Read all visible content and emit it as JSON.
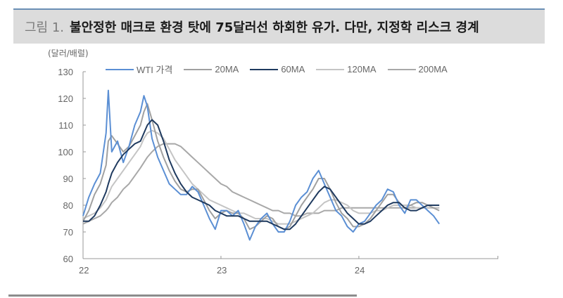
{
  "title": {
    "prefix": "그림 1.",
    "text": "불안정한 매크로 환경 탓에 75달러선 하회한 유가. 다만, 지정학 리스크 경계"
  },
  "unit_label": "(달러/배럴)",
  "legend": [
    {
      "label": "WTI 가격",
      "color": "#5b8fd4"
    },
    {
      "label": "20MA",
      "color": "#a0a0a0"
    },
    {
      "label": "60MA",
      "color": "#1f3a5f"
    },
    {
      "label": "120MA",
      "color": "#c4c4c4"
    },
    {
      "label": "200MA",
      "color": "#a8a8a8"
    }
  ],
  "chart_data": {
    "type": "line",
    "title": "불안정한 매크로 환경 탓에 75달러선 하회한 유가. 다만, 지정학 리스크 경계",
    "xlabel": "",
    "ylabel": "(달러/배럴)",
    "ylim": [
      60,
      130
    ],
    "yticks": [
      60,
      70,
      80,
      90,
      100,
      110,
      120,
      130
    ],
    "xtick_labels": [
      "22",
      "23",
      "24"
    ],
    "x_unit": "months since Jan 2022",
    "x": [
      0,
      0.5,
      1,
      1.5,
      2,
      2.2,
      2.5,
      3,
      3.5,
      4,
      4.5,
      5,
      5.3,
      5.6,
      6,
      6.5,
      7,
      7.5,
      8,
      8.5,
      9,
      9.5,
      10,
      10.5,
      11,
      11.5,
      12,
      12.5,
      13,
      13.5,
      14,
      14.5,
      15,
      15.5,
      16,
      16.5,
      17,
      17.5,
      18,
      18.5,
      19,
      19.5,
      20,
      20.5,
      21,
      21.5,
      22,
      22.5,
      23,
      23.5,
      24,
      24.5,
      25,
      25.5,
      26,
      26.5,
      27,
      27.5,
      28,
      28.5,
      29,
      29.5,
      30,
      30.5,
      31
    ],
    "series": [
      {
        "name": "WTI 가격",
        "color": "#5b8fd4",
        "width": 2,
        "values": [
          76,
          83,
          88,
          92,
          107,
          123,
          100,
          104,
          96,
          102,
          110,
          115,
          121,
          117,
          105,
          98,
          93,
          88,
          86,
          84,
          84,
          87,
          85,
          80,
          75,
          71,
          78,
          78,
          76,
          78,
          73,
          67,
          72,
          75,
          77,
          73,
          70,
          70,
          74,
          80,
          83,
          85,
          90,
          93,
          88,
          83,
          78,
          76,
          72,
          70,
          73,
          74,
          77,
          80,
          82,
          86,
          85,
          80,
          77,
          82,
          82,
          80,
          78,
          76,
          73
        ]
      },
      {
        "name": "20MA",
        "color": "#a0a0a0",
        "width": 2,
        "values": [
          74,
          78,
          84,
          88,
          95,
          104,
          106,
          103,
          100,
          102,
          106,
          110,
          115,
          118,
          112,
          104,
          98,
          93,
          89,
          86,
          85,
          86,
          86,
          82,
          78,
          75,
          77,
          78,
          77,
          77,
          75,
          71,
          72,
          74,
          76,
          75,
          72,
          71,
          72,
          76,
          80,
          83,
          86,
          90,
          90,
          86,
          81,
          77,
          75,
          72,
          72,
          73,
          75,
          78,
          81,
          84,
          84,
          81,
          79,
          80,
          81,
          81,
          80,
          79,
          78
        ]
      },
      {
        "name": "60MA",
        "color": "#1f3a5f",
        "width": 2,
        "values": [
          74,
          74,
          76,
          80,
          85,
          88,
          92,
          96,
          99,
          101,
          103,
          104,
          107,
          110,
          112,
          110,
          104,
          97,
          92,
          88,
          85,
          83,
          82,
          81,
          80,
          78,
          77,
          76,
          76,
          76,
          75,
          74,
          74,
          74,
          74,
          73,
          72,
          71,
          71,
          73,
          76,
          79,
          82,
          85,
          87,
          86,
          83,
          80,
          77,
          75,
          73,
          73,
          74,
          76,
          78,
          80,
          81,
          81,
          79,
          78,
          78,
          79,
          80,
          80,
          80
        ]
      },
      {
        "name": "120MA",
        "color": "#c4c4c4",
        "width": 2,
        "values": [
          75,
          76,
          77,
          79,
          82,
          84,
          87,
          90,
          93,
          96,
          99,
          102,
          105,
          107,
          108,
          107,
          105,
          101,
          97,
          94,
          91,
          88,
          86,
          84,
          82,
          81,
          80,
          79,
          78,
          77,
          77,
          76,
          75,
          75,
          75,
          74,
          73,
          73,
          73,
          74,
          75,
          76,
          77,
          79,
          81,
          82,
          82,
          81,
          80,
          78,
          77,
          77,
          77,
          78,
          78,
          79,
          80,
          80,
          80,
          80,
          79,
          79,
          79,
          79,
          79
        ]
      },
      {
        "name": "200MA",
        "color": "#a8a8a8",
        "width": 2,
        "values": [
          73,
          74,
          75,
          76,
          78,
          79,
          81,
          83,
          86,
          88,
          91,
          94,
          96,
          98,
          100,
          102,
          103,
          103,
          103,
          102,
          100,
          98,
          96,
          94,
          92,
          90,
          88,
          87,
          85,
          84,
          83,
          82,
          81,
          80,
          79,
          78,
          78,
          77,
          77,
          76,
          76,
          77,
          77,
          77,
          78,
          78,
          78,
          79,
          79,
          79,
          79,
          79,
          79,
          79,
          79,
          79,
          79,
          79,
          79,
          79,
          79,
          79,
          79,
          79,
          79
        ]
      }
    ],
    "legend_position": "top",
    "grid": false
  },
  "axes": {
    "y_ticks": [
      "130",
      "120",
      "110",
      "100",
      "90",
      "80",
      "70",
      "60"
    ],
    "x_ticks": [
      "22",
      "23",
      "24"
    ]
  }
}
